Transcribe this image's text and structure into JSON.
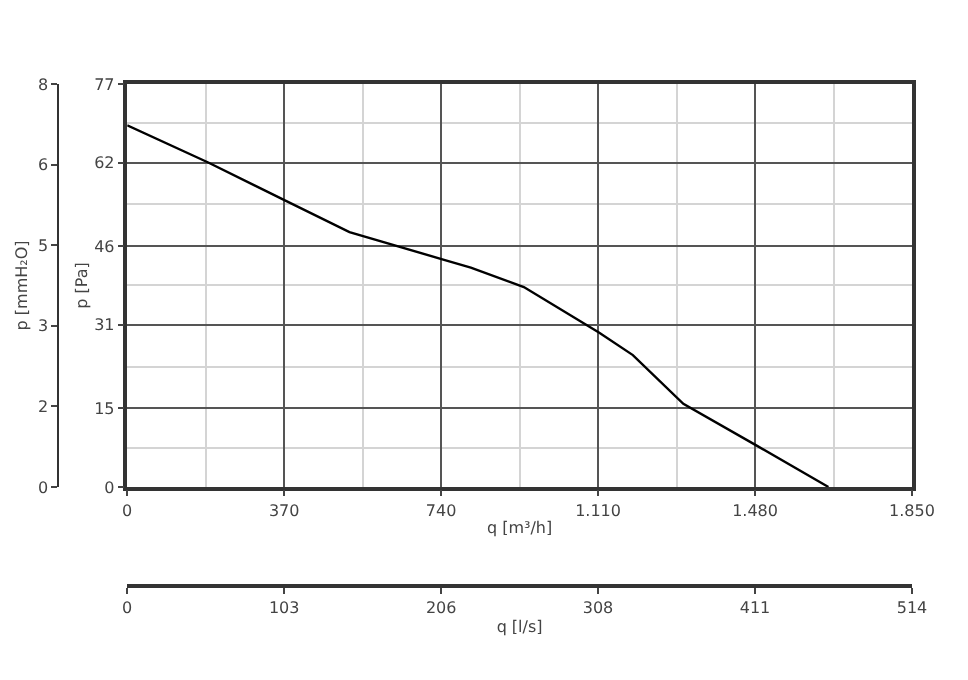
{
  "chart_data": {
    "type": "line",
    "xlabel": "q [m³/h]",
    "ylabel": "p [Pa]",
    "y2label": "p [mmH₂O]",
    "x2label": "q [l/s]",
    "x": [
      0,
      191,
      373,
      524,
      747,
      810,
      935,
      1112,
      1192,
      1311,
      1486,
      1653
    ],
    "series": [
      {
        "color": "#000000",
        "values": [
          69.1,
          62.0,
          54.7,
          48.7,
          43.4,
          41.9,
          38.2,
          29.5,
          25.2,
          15.9,
          7.8,
          0
        ]
      }
    ],
    "xlim": [
      0,
      1850
    ],
    "xticks": [
      0,
      370,
      740,
      {
        "value": 1110,
        "label": "1.110"
      },
      {
        "value": 1480,
        "label": "1.480"
      },
      {
        "value": 1850,
        "label": "1.850"
      }
    ],
    "ylim": [
      0,
      77
    ],
    "yticks": [
      0,
      15,
      31,
      46,
      62,
      77
    ],
    "y2lim": [
      0,
      7.85
    ],
    "y2ticks": [
      {
        "value": 0,
        "label": "0"
      },
      {
        "value": 1.57,
        "label": "2"
      },
      {
        "value": 3.14,
        "label": "3"
      },
      {
        "value": 4.71,
        "label": "5"
      },
      {
        "value": 6.28,
        "label": "6"
      },
      {
        "value": 7.85,
        "label": "8"
      }
    ],
    "x2lim": [
      0,
      513.9
    ],
    "x2ticks": [
      {
        "value": 0,
        "label": "0"
      },
      {
        "value": 102.8,
        "label": "103"
      },
      {
        "value": 205.6,
        "label": "206"
      },
      {
        "value": 308.3,
        "label": "308"
      },
      {
        "value": 411.1,
        "label": "411"
      },
      {
        "value": 513.9,
        "label": "514"
      }
    ],
    "grid": true,
    "marker": "none",
    "line_style": "solid"
  }
}
